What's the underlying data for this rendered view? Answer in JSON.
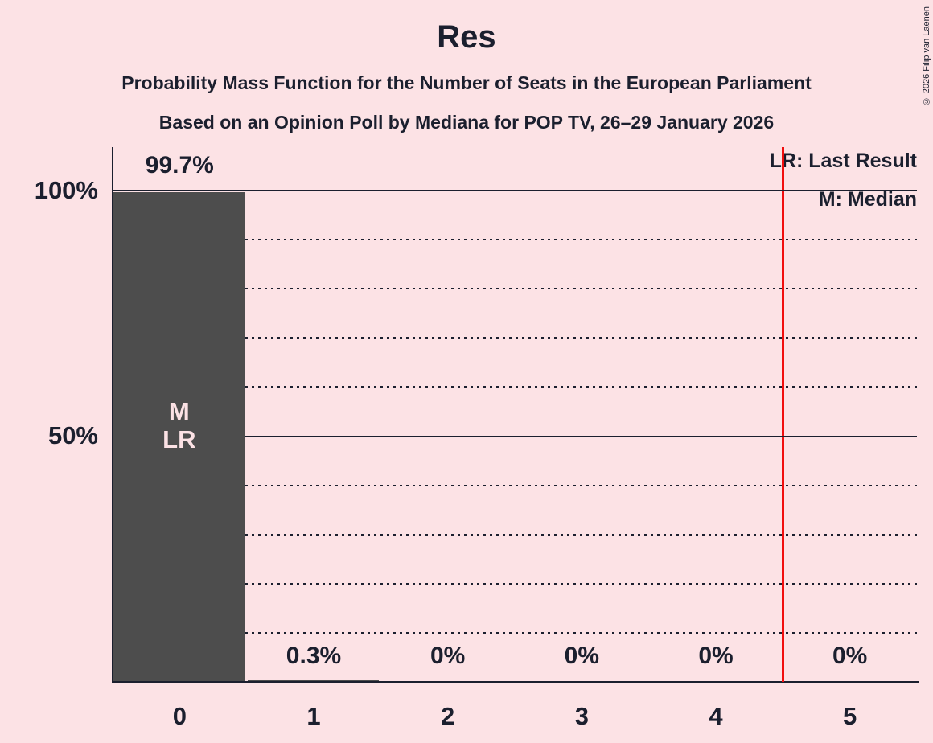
{
  "header": {
    "title": "Res",
    "subtitle1": "Probability Mass Function for the Number of Seats in the European Parliament",
    "subtitle2": "Based on an Opinion Poll by Mediana for POP TV, 26–29 January 2026",
    "copyright": "© 2026 Filip van Laenen"
  },
  "legend": {
    "lr": "LR: Last Result",
    "m": "M: Median"
  },
  "chart_data": {
    "type": "bar",
    "title": "Res",
    "xlabel": "Number of Seats",
    "ylabel": "Probability",
    "categories": [
      "0",
      "1",
      "2",
      "3",
      "4",
      "5"
    ],
    "values": [
      99.7,
      0.3,
      0,
      0,
      0,
      0
    ],
    "value_labels": [
      "99.7%",
      "0.3%",
      "0%",
      "0%",
      "0%",
      "0%"
    ],
    "bar_annotations": [
      "M\nLR",
      "",
      "",
      "",
      "",
      ""
    ],
    "ytick_labels": [
      "100%",
      "50%"
    ],
    "ytick_values": [
      100,
      50
    ],
    "ylim": [
      0,
      100
    ],
    "gridlines_solid": [
      100,
      50
    ],
    "gridlines_dotted": [
      90,
      80,
      70,
      60,
      40,
      30,
      20,
      10
    ],
    "threshold_x": 4.5,
    "legend_position": "top-right",
    "colors": {
      "background": "#fce2e5",
      "ink": "#1b1f2e",
      "bar": "#4d4d4d",
      "bar_label": "#fce2e5",
      "threshold": "#f10e0e"
    }
  }
}
